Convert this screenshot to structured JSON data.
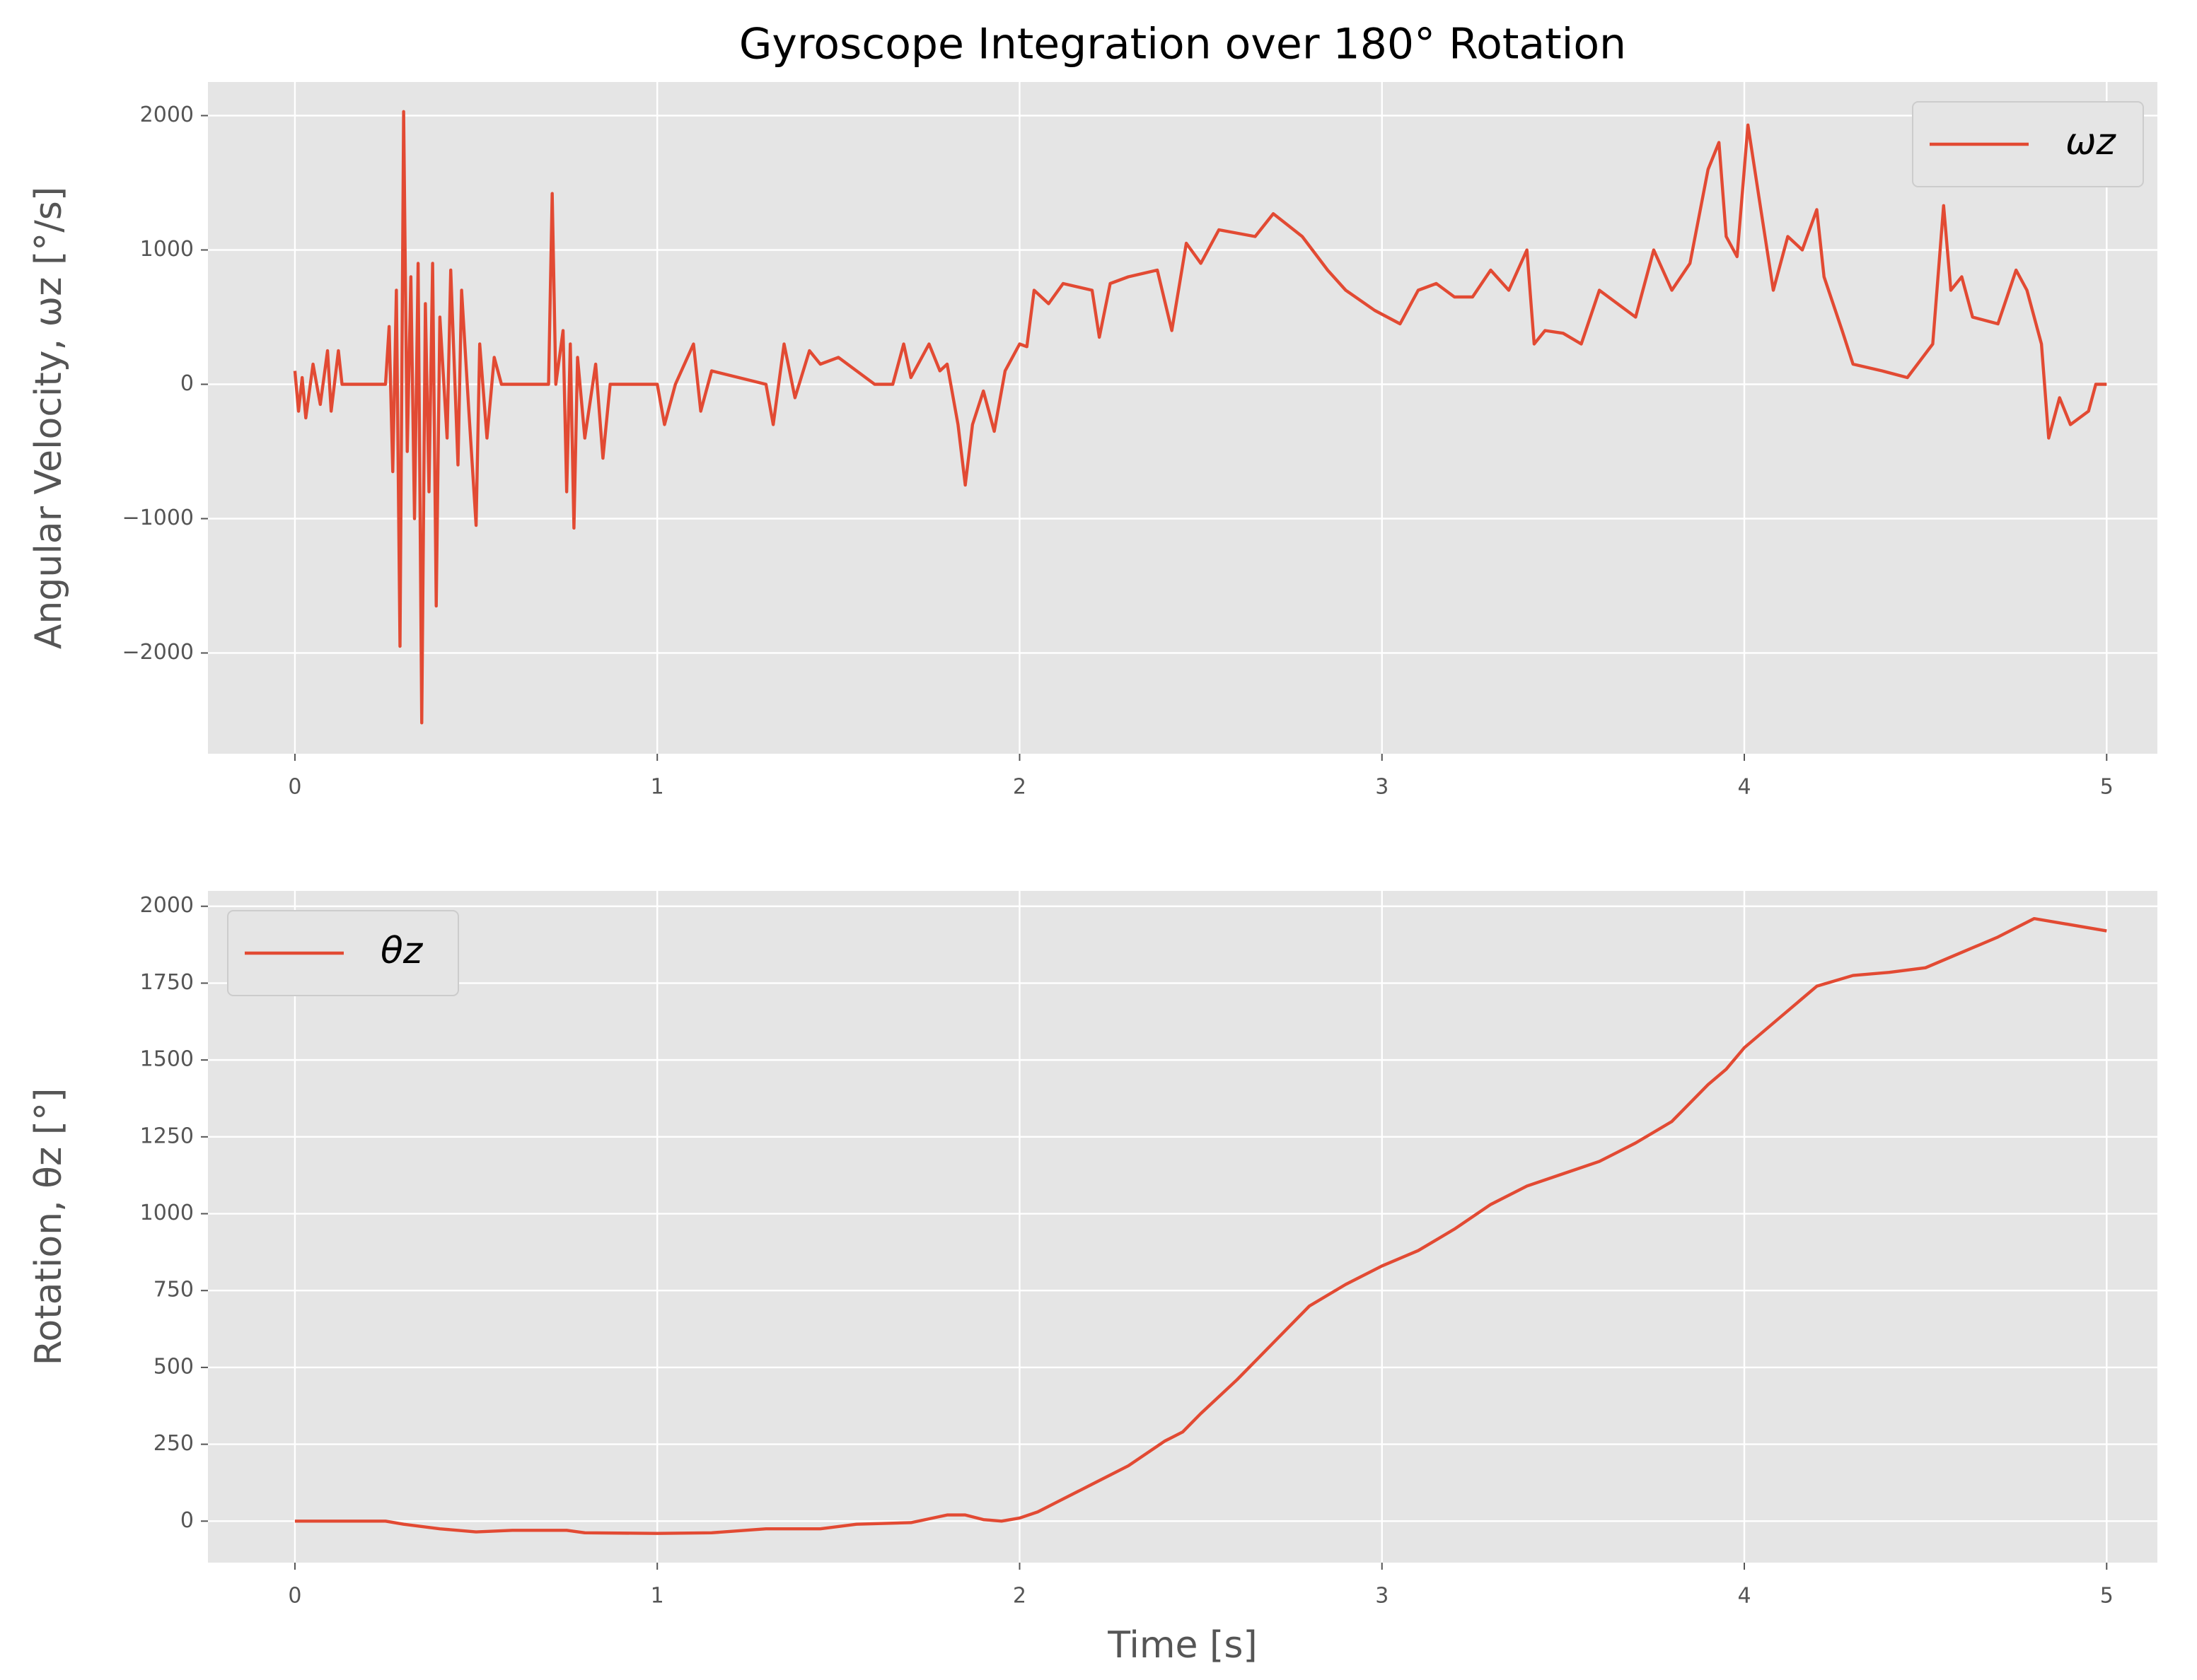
{
  "chart_data": [
    {
      "type": "line",
      "title": "Gyroscope Integration over 180° Rotation",
      "ylabel": "Angular Velocity, ωz [°/s]",
      "legend": "upper right",
      "grid": true,
      "xlim": [
        -0.24,
        5.14
      ],
      "xticks": [
        0,
        1,
        2,
        3,
        4,
        5
      ],
      "ylim": [
        -2750,
        2250
      ],
      "yticks": [
        {
          "value": -2000,
          "label": "−2000"
        },
        {
          "value": -1000,
          "label": "−1000"
        },
        0,
        1000,
        2000
      ],
      "x": [
        0,
        0.01,
        0.02,
        0.03,
        0.05,
        0.07,
        0.09,
        0.1,
        0.12,
        0.13,
        0.25,
        0.26,
        0.27,
        0.28,
        0.29,
        0.3,
        0.31,
        0.32,
        0.33,
        0.34,
        0.35,
        0.36,
        0.37,
        0.38,
        0.39,
        0.4,
        0.42,
        0.43,
        0.45,
        0.46,
        0.48,
        0.5,
        0.51,
        0.53,
        0.55,
        0.57,
        0.7,
        0.71,
        0.72,
        0.74,
        0.75,
        0.76,
        0.77,
        0.78,
        0.8,
        0.83,
        0.85,
        0.87,
        1.0,
        1.02,
        1.05,
        1.1,
        1.12,
        1.15,
        1.3,
        1.32,
        1.35,
        1.38,
        1.42,
        1.45,
        1.5,
        1.55,
        1.6,
        1.65,
        1.68,
        1.7,
        1.75,
        1.78,
        1.8,
        1.83,
        1.85,
        1.87,
        1.9,
        1.93,
        1.96,
        2.0,
        2.02,
        2.04,
        2.08,
        2.12,
        2.2,
        2.22,
        2.25,
        2.3,
        2.38,
        2.42,
        2.46,
        2.5,
        2.55,
        2.65,
        2.7,
        2.78,
        2.85,
        2.9,
        2.98,
        3.05,
        3.1,
        3.15,
        3.2,
        3.25,
        3.3,
        3.35,
        3.4,
        3.42,
        3.45,
        3.5,
        3.55,
        3.6,
        3.65,
        3.7,
        3.75,
        3.8,
        3.85,
        3.9,
        3.93,
        3.95,
        3.98,
        4.01,
        4.04,
        4.08,
        4.12,
        4.16,
        4.2,
        4.22,
        4.27,
        4.3,
        4.38,
        4.45,
        4.52,
        4.55,
        4.57,
        4.6,
        4.63,
        4.7,
        4.75,
        4.78,
        4.82,
        4.84,
        4.87,
        4.9,
        4.95,
        4.97,
        5.0
      ],
      "series": [
        {
          "name": "ωz",
          "color": "#e24a33",
          "values": [
            100,
            -200,
            50,
            -250,
            150,
            -150,
            250,
            -200,
            250,
            0,
            0,
            430,
            -650,
            700,
            -1950,
            2030,
            -500,
            800,
            -1000,
            900,
            -2520,
            600,
            -800,
            900,
            -1650,
            500,
            -400,
            850,
            -600,
            700,
            -200,
            -1050,
            300,
            -400,
            200,
            0,
            0,
            1420,
            0,
            400,
            -800,
            300,
            -1070,
            200,
            -400,
            150,
            -550,
            0,
            0,
            -300,
            0,
            300,
            -200,
            100,
            0,
            -300,
            300,
            -100,
            250,
            150,
            200,
            100,
            0,
            0,
            300,
            50,
            300,
            100,
            150,
            -300,
            -750,
            -300,
            -50,
            -350,
            100,
            300,
            280,
            700,
            600,
            750,
            700,
            350,
            750,
            800,
            850,
            400,
            1050,
            900,
            1150,
            1100,
            1270,
            1100,
            850,
            700,
            550,
            450,
            700,
            750,
            650,
            650,
            850,
            700,
            1000,
            300,
            400,
            380,
            300,
            700,
            600,
            500,
            1000,
            700,
            900,
            1600,
            1800,
            1100,
            950,
            1930,
            1400,
            700,
            1100,
            1000,
            1300,
            800,
            400,
            150,
            100,
            50,
            300,
            1330,
            700,
            800,
            500,
            450,
            850,
            700,
            300,
            -400,
            -100,
            -300,
            -200,
            0,
            0
          ]
        }
      ]
    },
    {
      "type": "line",
      "ylabel": "Rotation, θz [°]",
      "xlabel": "Time [s]",
      "legend": "upper left",
      "grid": true,
      "xlim": [
        -0.24,
        5.14
      ],
      "xticks": [
        0,
        1,
        2,
        3,
        4,
        5
      ],
      "ylim": [
        -135,
        2050
      ],
      "yticks": [
        0,
        250,
        500,
        750,
        1000,
        1250,
        1500,
        1750,
        2000
      ],
      "x": [
        0,
        0.25,
        0.3,
        0.4,
        0.5,
        0.6,
        0.75,
        0.8,
        1.0,
        1.15,
        1.3,
        1.45,
        1.55,
        1.7,
        1.8,
        1.85,
        1.9,
        1.95,
        2.0,
        2.05,
        2.1,
        2.2,
        2.3,
        2.4,
        2.45,
        2.5,
        2.6,
        2.7,
        2.8,
        2.9,
        3.0,
        3.1,
        3.2,
        3.3,
        3.4,
        3.5,
        3.6,
        3.7,
        3.8,
        3.9,
        3.95,
        4.0,
        4.1,
        4.2,
        4.3,
        4.4,
        4.5,
        4.6,
        4.7,
        4.8,
        4.9,
        5.0
      ],
      "series": [
        {
          "name": "θz",
          "color": "#e24a33",
          "values": [
            0,
            0,
            -10,
            -25,
            -35,
            -30,
            -30,
            -38,
            -40,
            -38,
            -25,
            -25,
            -10,
            -5,
            20,
            20,
            5,
            0,
            10,
            30,
            60,
            120,
            180,
            260,
            290,
            350,
            460,
            580,
            700,
            770,
            830,
            880,
            950,
            1030,
            1090,
            1130,
            1170,
            1230,
            1300,
            1420,
            1470,
            1540,
            1640,
            1740,
            1775,
            1785,
            1800,
            1850,
            1900,
            1960,
            1940,
            1920
          ]
        }
      ]
    }
  ]
}
